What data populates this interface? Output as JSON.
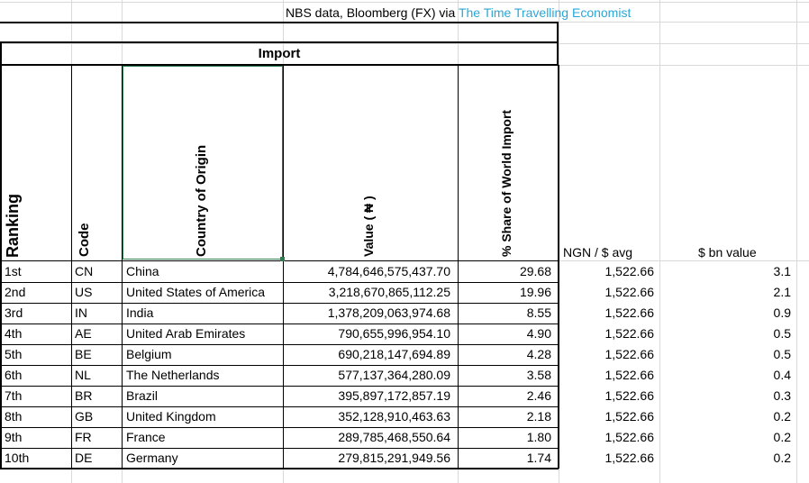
{
  "source": {
    "prefix": "NBS data, Bloomberg (FX) via ",
    "link_text": "The Time Travelling Economist"
  },
  "table_title": "Import",
  "headers": {
    "ranking": "Ranking",
    "code": "Code",
    "country": "Country of Origin",
    "value": "Value ( ₦ )",
    "share": "% Share of World Import",
    "ngn_avg": "NGN / $ avg",
    "bn_value": "$ bn value"
  },
  "rows": [
    {
      "rank": "1st",
      "code": "CN",
      "country": "China",
      "value": "4,784,646,575,437.70",
      "share": "29.68",
      "ngn": "1,522.66",
      "bn": "3.1"
    },
    {
      "rank": "2nd",
      "code": "US",
      "country": "United States of America",
      "value": "3,218,670,865,112.25",
      "share": "19.96",
      "ngn": "1,522.66",
      "bn": "2.1"
    },
    {
      "rank": "3rd",
      "code": "IN",
      "country": "India",
      "value": "1,378,209,063,974.68",
      "share": "8.55",
      "ngn": "1,522.66",
      "bn": "0.9"
    },
    {
      "rank": "4th",
      "code": "AE",
      "country": "United Arab Emirates",
      "value": "790,655,996,954.10",
      "share": "4.90",
      "ngn": "1,522.66",
      "bn": "0.5"
    },
    {
      "rank": "5th",
      "code": "BE",
      "country": "Belgium",
      "value": "690,218,147,694.89",
      "share": "4.28",
      "ngn": "1,522.66",
      "bn": "0.5"
    },
    {
      "rank": "6th",
      "code": "NL",
      "country": "The Netherlands",
      "value": "577,137,364,280.09",
      "share": "3.58",
      "ngn": "1,522.66",
      "bn": "0.4"
    },
    {
      "rank": "7th",
      "code": "BR",
      "country": "Brazil",
      "value": "395,897,172,857.19",
      "share": "2.46",
      "ngn": "1,522.66",
      "bn": "0.3"
    },
    {
      "rank": "8th",
      "code": "GB",
      "country": "United Kingdom",
      "value": "352,128,910,463.63",
      "share": "2.18",
      "ngn": "1,522.66",
      "bn": "0.2"
    },
    {
      "rank": "9th",
      "code": "FR",
      "country": "France",
      "value": "289,785,468,550.64",
      "share": "1.80",
      "ngn": "1,522.66",
      "bn": "0.2"
    },
    {
      "rank": "10th",
      "code": "DE",
      "country": "Germany",
      "value": "279,815,291,949.56",
      "share": "1.74",
      "ngn": "1,522.66",
      "bn": "0.2"
    }
  ]
}
